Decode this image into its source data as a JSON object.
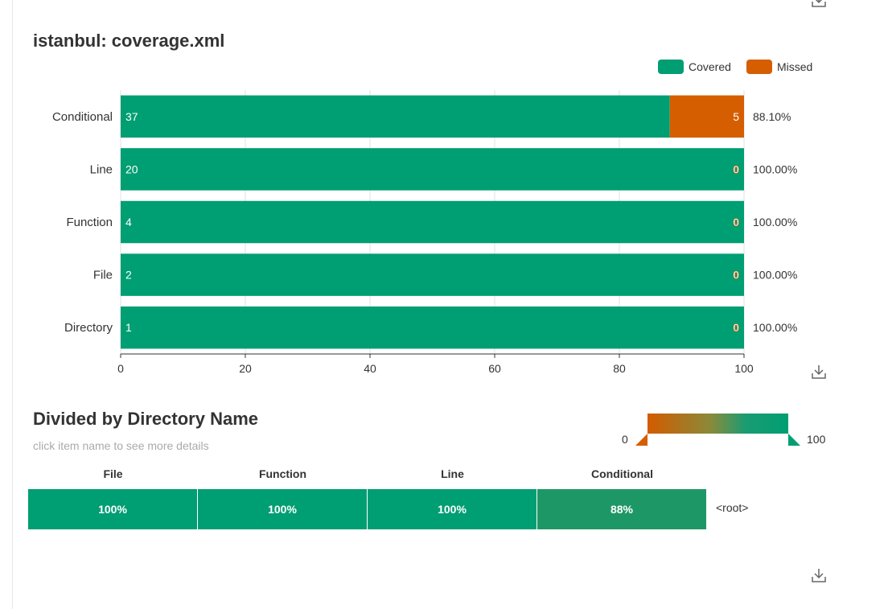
{
  "chart1": {
    "title": "istanbul: coverage.xml",
    "legend": [
      {
        "name": "Covered",
        "color": "#009e73"
      },
      {
        "name": "Missed",
        "color": "#d55e00"
      }
    ]
  },
  "chart_data": [
    {
      "type": "bar",
      "orientation": "horizontal",
      "stacked": true,
      "title": "istanbul: coverage.xml",
      "categories": [
        "Conditional",
        "Line",
        "Function",
        "File",
        "Directory"
      ],
      "series": [
        {
          "name": "Covered",
          "values": [
            37,
            20,
            4,
            2,
            1
          ],
          "color": "#009e73"
        },
        {
          "name": "Missed",
          "values": [
            5,
            0,
            0,
            0,
            0
          ],
          "color": "#d55e00"
        }
      ],
      "percent_labels": [
        "88.10%",
        "100.00%",
        "100.00%",
        "100.00%",
        "100.00%"
      ],
      "xlim": [
        0,
        100
      ],
      "xticks": [
        "0",
        "20",
        "40",
        "60",
        "80",
        "100"
      ],
      "grid": true,
      "legend_position": "top-right"
    },
    {
      "type": "heatmap",
      "title": "Divided by Directory Name",
      "subtitle": "click item name to see more details",
      "columns": [
        "File",
        "Function",
        "Line",
        "Conditional"
      ],
      "rows": [
        {
          "name": "<root>",
          "values": [
            100,
            100,
            100,
            88
          ],
          "labels": [
            "100%",
            "100%",
            "100%",
            "88%"
          ]
        }
      ],
      "visual_map": {
        "min_label": "0",
        "max_label": "100",
        "min_color": "#d55e00",
        "max_color": "#009e73"
      }
    }
  ]
}
